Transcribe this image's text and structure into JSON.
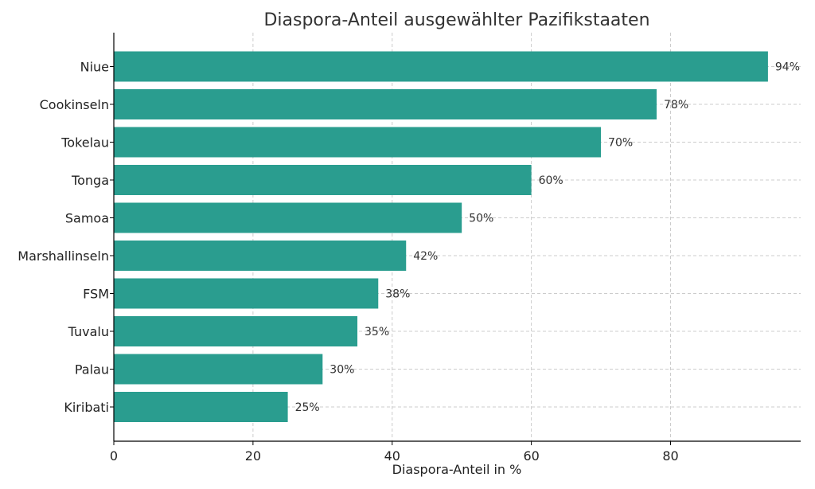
{
  "chart_data": {
    "type": "bar",
    "orientation": "horizontal",
    "title": "Diaspora-Anteil ausgewählter Pazifikstaaten",
    "xlabel": "Diaspora-Anteil in %",
    "ylabel": "",
    "categories": [
      "Niue",
      "Cookinseln",
      "Tokelau",
      "Tonga",
      "Samoa",
      "Marshallinseln",
      "FSM",
      "Tuvalu",
      "Palau",
      "Kiribati"
    ],
    "values": [
      94,
      78,
      70,
      60,
      50,
      42,
      38,
      35,
      30,
      25
    ],
    "data_labels": [
      "94%",
      "78%",
      "70%",
      "60%",
      "50%",
      "42%",
      "38%",
      "35%",
      "30%",
      "25%"
    ],
    "xlim": [
      0,
      98.7
    ],
    "xticks": [
      0,
      20,
      40,
      60,
      80
    ],
    "xtick_labels": [
      "0",
      "20",
      "40",
      "60",
      "80"
    ],
    "bar_color": "#2a9d8f",
    "grid": true,
    "legend": null
  }
}
